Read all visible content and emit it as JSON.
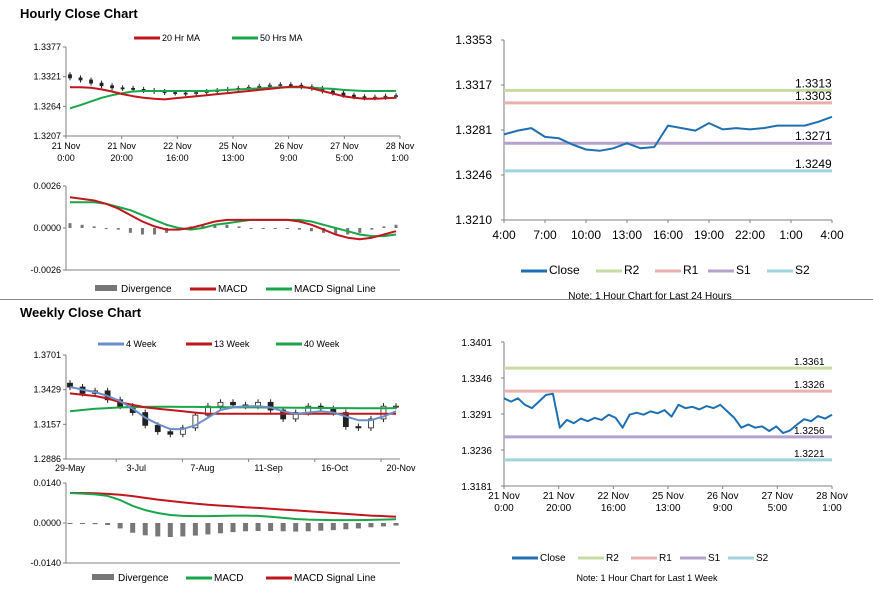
{
  "titles": {
    "hourly": "Hourly Close Chart",
    "weekly": "Weekly Close Chart"
  },
  "colors": {
    "red": "#c0161c",
    "green": "#19a64a",
    "blue": "#2d6db4",
    "steelblue": "#6a8fc8",
    "close": "#1f6fb2",
    "r2": "#c8dba3",
    "r1": "#eab0b0",
    "s1": "#b3a3cc",
    "s2": "#9fd3dd",
    "candle": "#222222",
    "divergence": "#777777",
    "axis": "#808080"
  },
  "chart_data": [
    {
      "id": "hourly-price",
      "type": "candlestick",
      "title": "Hourly Close Chart",
      "ylim": [
        1.3207,
        1.3377
      ],
      "yticks": [
        "1.3377",
        "1.3321",
        "1.3264",
        "1.3207"
      ],
      "xticks": [
        [
          "21 Nov",
          "0:00"
        ],
        [
          "21 Nov",
          "20:00"
        ],
        [
          "22 Nov",
          "16:00"
        ],
        [
          "25 Nov",
          "13:00"
        ],
        [
          "26 Nov",
          "9:00"
        ],
        [
          "27 Nov",
          "5:00"
        ],
        [
          "28 Nov",
          "1:00"
        ]
      ],
      "legend": [
        "20 Hr MA",
        "50 Hrs MA"
      ],
      "close": [
        1.3318,
        1.3314,
        1.3308,
        1.3303,
        1.3299,
        1.3298,
        1.3296,
        1.3294,
        1.3292,
        1.329,
        1.3289,
        1.3288,
        1.329,
        1.3292,
        1.3294,
        1.3296,
        1.3298,
        1.33,
        1.3302,
        1.3304,
        1.3305,
        1.3304,
        1.3301,
        1.3298,
        1.3293,
        1.3289,
        1.3285,
        1.3282,
        1.328,
        1.3281,
        1.3283,
        1.3284
      ],
      "ma20": [
        1.33,
        1.33,
        1.3299,
        1.3296,
        1.3292,
        1.3287,
        1.3283,
        1.328,
        1.3278,
        1.3277,
        1.3279,
        1.3281,
        1.3283,
        1.3285,
        1.3287,
        1.3289,
        1.3291,
        1.3293,
        1.3295,
        1.3297,
        1.3299,
        1.3301,
        1.3301,
        1.3298,
        1.3293,
        1.3288,
        1.3283,
        1.328,
        1.3278,
        1.3278,
        1.3279,
        1.328
      ],
      "ma50": [
        1.326,
        1.3266,
        1.3273,
        1.328,
        1.3285,
        1.3289,
        1.3292,
        1.3293,
        1.3293,
        1.3293,
        1.3293,
        1.3293,
        1.3293,
        1.3293,
        1.3294,
        1.3295,
        1.3296,
        1.3297,
        1.3298,
        1.3299,
        1.33,
        1.33,
        1.33,
        1.3299,
        1.3298,
        1.3297,
        1.3295,
        1.3294,
        1.3293,
        1.3293,
        1.3293,
        1.3293
      ]
    },
    {
      "id": "hourly-macd",
      "type": "macd",
      "ylim": [
        -0.0026,
        0.0026
      ],
      "yticks": [
        "0.0026",
        "0.0000",
        "-0.0026"
      ],
      "legend": [
        "Divergence",
        "MACD",
        "MACD Signal Line"
      ],
      "macd": [
        0.0019,
        0.0018,
        0.0017,
        0.0015,
        0.0012,
        0.0008,
        0.0004,
        0.0001,
        -0.0001,
        -0.0001,
        0.0,
        0.0002,
        0.0004,
        0.0005,
        0.0005,
        0.0005,
        0.0005,
        0.0005,
        0.0005,
        0.0004,
        0.0002,
        -0.0001,
        -0.0004,
        -0.0006,
        -0.0007,
        -0.0006,
        -0.0004,
        -0.0002
      ],
      "signal": [
        0.0016,
        0.0016,
        0.0016,
        0.0015,
        0.0013,
        0.0011,
        0.0008,
        0.0005,
        0.0002,
        0.0,
        -0.0001,
        0.0,
        0.0002,
        0.0003,
        0.0004,
        0.0005,
        0.0005,
        0.0005,
        0.0005,
        0.0005,
        0.0004,
        0.0002,
        0.0,
        -0.0002,
        -0.0004,
        -0.0005,
        -0.0005,
        -0.0004
      ]
    },
    {
      "id": "hourly-levels",
      "type": "line",
      "ylim": [
        1.321,
        1.3353
      ],
      "yticks": [
        "1.3353",
        "1.3317",
        "1.3281",
        "1.3246",
        "1.3210"
      ],
      "xticks": [
        "4:00",
        "7:00",
        "10:00",
        "13:00",
        "16:00",
        "19:00",
        "22:00",
        "1:00",
        "4:00"
      ],
      "legend": [
        "Close",
        "R2",
        "R1",
        "S1",
        "S2"
      ],
      "note": "Note: 1 Hour Chart for Last 24 Hours",
      "levels": {
        "r2": 1.3313,
        "r1": 1.3303,
        "s1": 1.3271,
        "s2": 1.3249
      },
      "level_labels": {
        "r2": "1.3313",
        "r1": "1.3303",
        "s1": "1.3271",
        "s2": "1.3249"
      },
      "close": [
        1.3278,
        1.3281,
        1.3283,
        1.3276,
        1.3275,
        1.327,
        1.3266,
        1.3265,
        1.3267,
        1.3271,
        1.3267,
        1.3268,
        1.3285,
        1.3283,
        1.3281,
        1.3287,
        1.3282,
        1.3283,
        1.3282,
        1.3283,
        1.3285,
        1.3285,
        1.3285,
        1.3288,
        1.3292
      ]
    },
    {
      "id": "weekly-price",
      "type": "candlestick",
      "title": "Weekly Close Chart",
      "ylim": [
        1.2886,
        1.3701
      ],
      "yticks": [
        "1.3701",
        "1.3429",
        "1.3157",
        "1.2886"
      ],
      "xticks": [
        "29-May",
        "3-Jul",
        "7-Aug",
        "11-Sep",
        "16-Oct",
        "20-Nov"
      ],
      "legend": [
        "4 Week",
        "13 Week",
        "40 Week"
      ],
      "close": [
        1.345,
        1.34,
        1.342,
        1.335,
        1.33,
        1.325,
        1.315,
        1.31,
        1.308,
        1.313,
        1.323,
        1.33,
        1.333,
        1.331,
        1.33,
        1.333,
        1.327,
        1.32,
        1.325,
        1.33,
        1.328,
        1.325,
        1.314,
        1.313,
        1.32,
        1.33,
        1.33
      ],
      "ma4": [
        1.345,
        1.343,
        1.341,
        1.338,
        1.334,
        1.328,
        1.321,
        1.316,
        1.312,
        1.312,
        1.315,
        1.321,
        1.327,
        1.329,
        1.33,
        1.33,
        1.329,
        1.326,
        1.324,
        1.325,
        1.326,
        1.325,
        1.322,
        1.319,
        1.319,
        1.322,
        1.326
      ],
      "ma13": [
        1.34,
        1.339,
        1.338,
        1.336,
        1.333,
        1.331,
        1.329,
        1.328,
        1.327,
        1.326,
        1.325,
        1.324,
        1.324,
        1.324,
        1.324,
        1.324,
        1.324,
        1.324,
        1.324,
        1.324,
        1.324,
        1.324,
        1.324,
        1.324,
        1.324,
        1.324,
        1.324
      ],
      "ma40": [
        1.326,
        1.327,
        1.328,
        1.3285,
        1.329,
        1.3292,
        1.3294,
        1.3295,
        1.3295,
        1.3294,
        1.3294,
        1.3293,
        1.3292,
        1.3291,
        1.329,
        1.329,
        1.3289,
        1.3289,
        1.3288,
        1.3287,
        1.3286,
        1.3285,
        1.3285,
        1.3284,
        1.3284,
        1.3284,
        1.3285
      ]
    },
    {
      "id": "weekly-macd",
      "type": "macd",
      "ylim": [
        -0.014,
        0.014
      ],
      "yticks": [
        "0.0140",
        "0.0000",
        "-0.0140"
      ],
      "legend": [
        "Divergence",
        "MACD",
        "MACD Signal Line"
      ],
      "macd": [
        0.0105,
        0.0103,
        0.01,
        0.0095,
        0.008,
        0.006,
        0.0045,
        0.0035,
        0.0028,
        0.0025,
        0.0024,
        0.0024,
        0.0025,
        0.0026,
        0.0026,
        0.0025,
        0.0022,
        0.0018,
        0.0014,
        0.0012,
        0.0011,
        0.001,
        0.001,
        0.001,
        0.0011,
        0.0012,
        0.0013
      ],
      "signal": [
        0.0105,
        0.0105,
        0.0104,
        0.0102,
        0.0099,
        0.0094,
        0.0088,
        0.0082,
        0.0077,
        0.0072,
        0.0068,
        0.0064,
        0.0061,
        0.0058,
        0.0055,
        0.0053,
        0.005,
        0.0047,
        0.0044,
        0.0041,
        0.0038,
        0.0035,
        0.0032,
        0.0029,
        0.0026,
        0.0024,
        0.0022
      ]
    },
    {
      "id": "weekly-levels",
      "type": "line",
      "ylim": [
        1.3181,
        1.3401
      ],
      "yticks": [
        "1.3401",
        "1.3346",
        "1.3291",
        "1.3236",
        "1.3181"
      ],
      "xticks": [
        [
          "21 Nov",
          "0:00"
        ],
        [
          "21 Nov",
          "20:00"
        ],
        [
          "22 Nov",
          "16:00"
        ],
        [
          "25 Nov",
          "13:00"
        ],
        [
          "26 Nov",
          "9:00"
        ],
        [
          "27 Nov",
          "5:00"
        ],
        [
          "28 Nov",
          "1:00"
        ]
      ],
      "legend": [
        "Close",
        "R2",
        "R1",
        "S1",
        "S2"
      ],
      "note": "Note: 1 Hour Chart for Last 1 Week",
      "levels": {
        "r2": 1.3361,
        "r1": 1.3326,
        "s1": 1.3256,
        "s2": 1.3221
      },
      "level_labels": {
        "r2": "1.3361",
        "r1": "1.3326",
        "s1": "1.3256",
        "s2": "1.3221"
      },
      "close": [
        1.3315,
        1.331,
        1.3315,
        1.3305,
        1.33,
        1.331,
        1.332,
        1.3322,
        1.327,
        1.3282,
        1.3277,
        1.3284,
        1.328,
        1.3285,
        1.3282,
        1.329,
        1.3285,
        1.327,
        1.329,
        1.3293,
        1.329,
        1.3295,
        1.3292,
        1.3297,
        1.3287,
        1.3305,
        1.33,
        1.3302,
        1.3298,
        1.3303,
        1.33,
        1.3305,
        1.3295,
        1.3285,
        1.327,
        1.3275,
        1.327,
        1.3272,
        1.3265,
        1.3272,
        1.3262,
        1.3266,
        1.3275,
        1.3283,
        1.328,
        1.3288,
        1.3284,
        1.329
      ]
    }
  ]
}
